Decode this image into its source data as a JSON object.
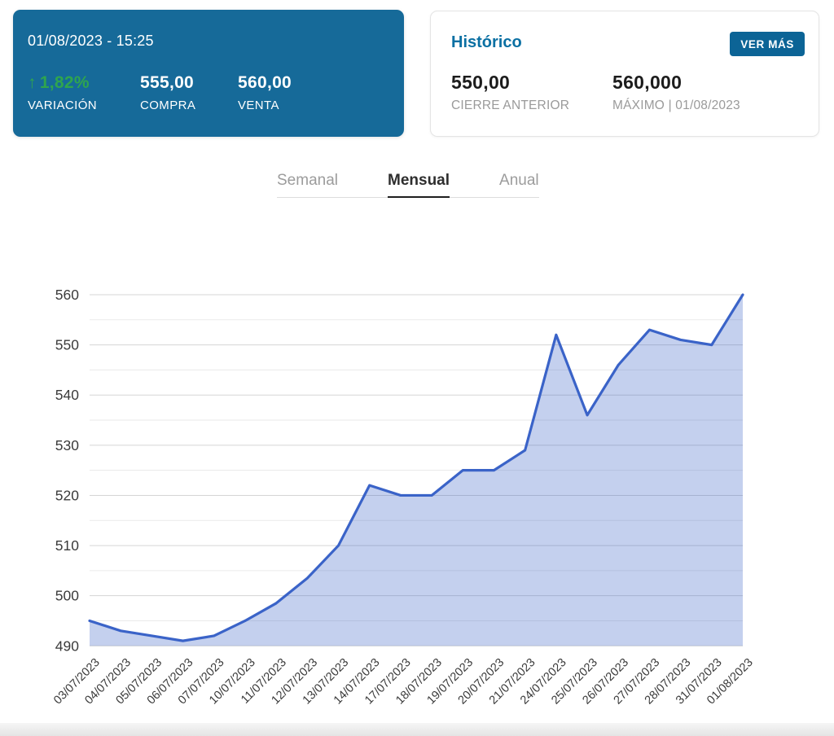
{
  "ticker_card": {
    "datetime": "01/08/2023 - 15:25",
    "variation": {
      "icon_glyph": "↑",
      "value": "1,82%",
      "label": "VARIACIÓN"
    },
    "buy": {
      "value": "555,00",
      "label": "COMPRA"
    },
    "sell": {
      "value": "560,00",
      "label": "VENTA"
    }
  },
  "historico_card": {
    "title": "Histórico",
    "button_label": "VER MÁS",
    "previous_close": {
      "value": "550,00",
      "label": "CIERRE ANTERIOR"
    },
    "maximum": {
      "value": "560,000",
      "label": "MÁXIMO | 01/08/2023"
    }
  },
  "tabs": [
    {
      "label": "Semanal",
      "active": false
    },
    {
      "label": "Mensual",
      "active": true
    },
    {
      "label": "Anual",
      "active": false
    }
  ],
  "colors": {
    "ticker_card_bg": "#166a99",
    "positive_green": "#2fa54e",
    "button_bg": "#0c6496",
    "historico_title": "#0b70a3",
    "line": "#3a63c8",
    "fill": "rgba(58,99,200,0.30)",
    "grid_major": "#d5d5d5",
    "grid_minor": "#eaeaea",
    "axis_text": "#3b3b3b"
  },
  "chart_data": {
    "type": "area",
    "title": "",
    "xlabel": "",
    "ylabel": "",
    "legend": "none",
    "grid": true,
    "ylim": [
      490,
      560
    ],
    "ytick_major": 10,
    "ytick_minor": 5,
    "yticks": [
      490,
      500,
      510,
      520,
      530,
      540,
      550,
      560
    ],
    "x": [
      "03/07/2023",
      "04/07/2023",
      "05/07/2023",
      "06/07/2023",
      "07/07/2023",
      "10/07/2023",
      "11/07/2023",
      "12/07/2023",
      "13/07/2023",
      "14/07/2023",
      "17/07/2023",
      "18/07/2023",
      "19/07/2023",
      "20/07/2023",
      "21/07/2023",
      "24/07/2023",
      "25/07/2023",
      "26/07/2023",
      "27/07/2023",
      "28/07/2023",
      "31/07/2023",
      "01/08/2023"
    ],
    "values": [
      495,
      493,
      492,
      491,
      492,
      495,
      498.5,
      503.5,
      510,
      522,
      520,
      520,
      525,
      525,
      529,
      552,
      536,
      546,
      553,
      551,
      550,
      560
    ]
  }
}
